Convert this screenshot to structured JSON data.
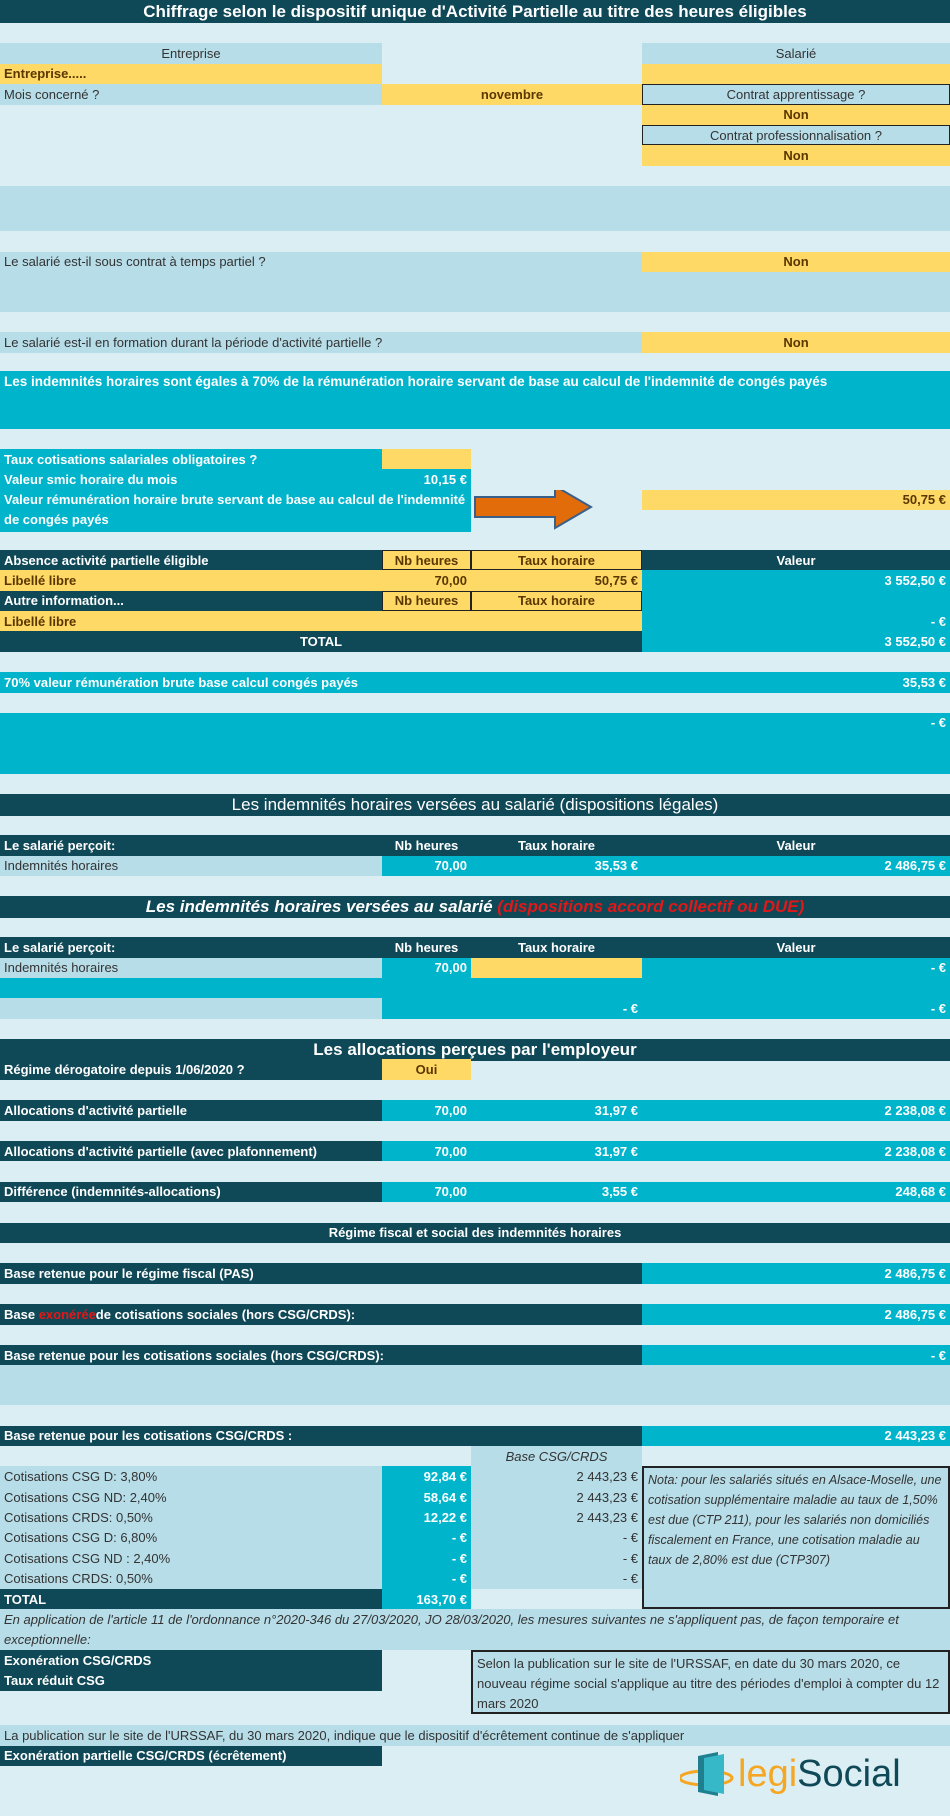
{
  "title": "Chiffrage selon le dispositif unique d'Activité Partielle au titre des heures éligibles",
  "identity": {
    "entreprise_header": "Entreprise",
    "salarie_header": "Salarié",
    "entreprise_value": "Entreprise.....",
    "mois_label": "Mois concerné ?",
    "mois_value": "novembre",
    "apprentissage_label": "Contrat apprentissage ?",
    "apprentissage_value": "Non",
    "pro_label": "Contrat professionnalisation ?",
    "pro_value": "Non"
  },
  "questions": {
    "temps_partiel_label": "Le salarié est-il sous contrat à temps partiel ?",
    "temps_partiel_value": "Non",
    "formation_label": "Le salarié est-il en formation durant la période d'activité partielle ?",
    "formation_value": "Non"
  },
  "info_banner": "Les indemnités horaires sont égales à 70% de la rémunération horaire servant de base au calcul de l'indemnité de congés payés",
  "rates": {
    "taux_label": "Taux cotisations salariales obligatoires ?",
    "taux_value": "",
    "smic_label": "Valeur smic horaire du mois",
    "smic_value": "10,15 €",
    "remu_label": "Valeur rémunération horaire brute servant de base au calcul de l'indemnité de congés payés",
    "remu_value": "50,75 €"
  },
  "absence": {
    "label": "Absence activité partielle éligible",
    "nb_heures": "Nb heures",
    "taux_horaire": "Taux horaire",
    "valeur": "Valeur",
    "row1_label": "Libellé libre",
    "row1_heures": "70,00",
    "row1_taux": "50,75 €",
    "row1_valeur": "3 552,50 €",
    "autre_label": "Autre information...",
    "row2_label": "Libellé libre",
    "row2_valeur": "-   €",
    "total_label": "TOTAL",
    "total_value": "3 552,50 €"
  },
  "seventy": {
    "label": "70%  valeur rémunération brute base calcul congés payés",
    "value": "35,53 €",
    "block_value": "-   €"
  },
  "legal": {
    "heading": "Les indemnités horaires versées au salarié (dispositions légales)",
    "percoit": "Le salarié perçoit:",
    "nb_heures": "Nb heures",
    "taux_horaire": "Taux horaire",
    "valeur": "Valeur",
    "row_label": "Indemnités horaires",
    "heures": "70,00",
    "taux": "35,53 €",
    "montant": "2 486,75 €"
  },
  "accord": {
    "heading_main": "Les indemnités horaires versées au salarié",
    "heading_red": "(dispositions accord collectif ou DUE)",
    "percoit": "Le salarié perçoit:",
    "nb_heures": "Nb heures",
    "taux_horaire": "Taux horaire",
    "valeur": "Valeur",
    "row_label": "Indemnités horaires",
    "heures": "70,00",
    "taux": "",
    "montant": "-   €",
    "sub_taux": "-   €",
    "sub_montant": "-   €"
  },
  "allocations": {
    "heading": "Les allocations perçues par l'employeur",
    "derog_label": "Régime dérogatoire depuis 1/06/2020 ?",
    "derog_value": "Oui",
    "rows": [
      {
        "label": "Allocations d'activité partielle",
        "heures": "70,00",
        "taux": "31,97 €",
        "montant": "2 238,08 €"
      },
      {
        "label": "Allocations d'activité partielle (avec plafonnement)",
        "heures": "70,00",
        "taux": "31,97 €",
        "montant": "2 238,08 €"
      },
      {
        "label": "Différence (indemnités-allocations)",
        "heures": "70,00",
        "taux": "3,55 €",
        "montant": "248,68 €"
      }
    ]
  },
  "fiscal": {
    "heading": "Régime fiscal et social des indemnités horaires",
    "pas_label": "Base retenue pour le régime fiscal (PAS)",
    "pas_value": "2 486,75 €",
    "exo_pre": "Base ",
    "exo_red": "exonérée",
    "exo_post": " de cotisations sociales (hors CSG/CRDS):",
    "exo_value": "2 486,75 €",
    "soc_label": "Base retenue pour les cotisations sociales (hors CSG/CRDS):",
    "soc_value": "-   €",
    "csg_label": "Base retenue pour les cotisations CSG/CRDS :",
    "csg_value": "2 443,23 €"
  },
  "cotisations": {
    "base_header": "Base CSG/CRDS",
    "rows": [
      {
        "label": "Cotisations CSG D: 3,80%",
        "montant": "92,84 €",
        "base": "2 443,23 €"
      },
      {
        "label": "Cotisations CSG ND: 2,40%",
        "montant": "58,64 €",
        "base": "2 443,23 €"
      },
      {
        "label": "Cotisations CRDS: 0,50%",
        "montant": "12,22 €",
        "base": "2 443,23 €"
      },
      {
        "label": "Cotisations CSG D: 6,80%",
        "montant": "-   €",
        "base": "-   €"
      },
      {
        "label": "Cotisations CSG ND : 2,40%",
        "montant": "-   €",
        "base": "-   €"
      },
      {
        "label": "Cotisations CRDS: 0,50%",
        "montant": "-   €",
        "base": "-   €"
      }
    ],
    "total_label": "TOTAL",
    "total_value": "163,70 €",
    "nota": "Nota: pour les salariés situés en Alsace-Moselle, une cotisation supplémentaire maladie au taux de 1,50% est due (CTP 211), pour les salariés non domiciliés fiscalement en France, une cotisation maladie au taux de 2,80% est due (CTP307)"
  },
  "ordonnance": {
    "text": "En application de l'article 11 de l'ordonnance n°2020-346 du 27/03/2020, JO 28/03/2020, les mesures suivantes ne s'appliquent pas, de façon temporaire et exceptionnelle:",
    "exo": "Exonération CSG/CRDS",
    "taux_reduit": "Taux réduit CSG",
    "urssaf_note": "Selon la publication sur le site de l'URSSAF, en date du 30 mars 2020, ce nouveau régime social s'applique au titre des périodes d'emploi à compter du 12 mars 2020",
    "publication": "La publication sur le site de l'URSSAF, du 30 mars 2020, indique que le dispositif d'écrêtement continue de s'appliquer",
    "ecretement": "Exonération partielle CSG/CRDS (écrêtement)"
  },
  "logo": {
    "part1": "legi",
    "part2": "Social"
  },
  "colors": {
    "dark": "#0f4857",
    "teal": "#00b4cc",
    "yellow": "#ffd966",
    "light": "#b7dde8",
    "background": "#daeef3",
    "arrow": "#e36c0a",
    "red": "#e01818"
  }
}
